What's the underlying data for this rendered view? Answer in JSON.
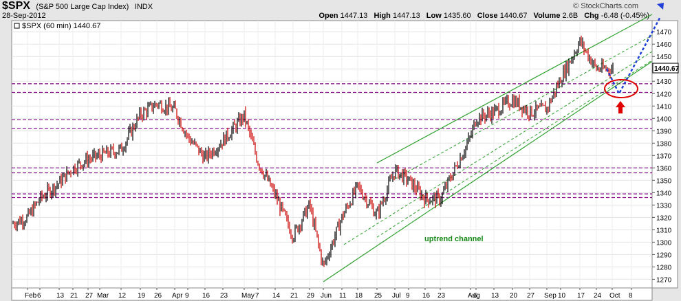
{
  "header": {
    "symbol": "$SPX",
    "description": "(S&P 500 Large Cap Index)",
    "exchange": "INDX",
    "date": "28-Sep-2012",
    "brand": "© StockCharts.com",
    "open_label": "Open",
    "open": "1447.13",
    "high_label": "High",
    "high": "1447.13",
    "low_label": "Low",
    "low": "1435.60",
    "close_label": "Close",
    "close": "1440.67",
    "volume_label": "Volume",
    "volume": "2.6B",
    "chg_label": "Chg",
    "chg": "-6.48 (-0.45%)"
  },
  "legend": {
    "label": "$SPX (60 min) 1440.67"
  },
  "price_tag": "1440.67",
  "annotation": "uptrend channel",
  "colors": {
    "up": "#000000",
    "down": "#cc0000",
    "channel": "#2ca02c",
    "hline": "#800080",
    "projection": "#1f3fd6",
    "circle": "#e00000",
    "arrow": "#e00000"
  },
  "chart_data": {
    "type": "ohlc",
    "interval": "60 min",
    "ylim": [
      1263,
      1479
    ],
    "y_ticks": [
      "1270",
      "1280",
      "1290",
      "1300",
      "1310",
      "1320",
      "1330",
      "1340",
      "1350",
      "1360",
      "1370",
      "1380",
      "1390",
      "1400",
      "1410",
      "1420",
      "1430",
      "1440",
      "1450",
      "1460",
      "1470"
    ],
    "x_ticks": [
      "Feb",
      "6",
      "13",
      "21",
      "27",
      "Mar",
      "12",
      "19",
      "26",
      "Apr",
      "9",
      "16",
      "23",
      "May",
      "7",
      "14",
      "21",
      "29",
      "Jun",
      "11",
      "18",
      "25",
      "Jul",
      "9",
      "16",
      "23",
      "Aug",
      "6",
      "13",
      "20",
      "27",
      "Sep",
      "10",
      "17",
      "24",
      "Oct",
      "8"
    ],
    "price_path": [
      {
        "x": "Feb",
        "y": 1320
      },
      {
        "x": "6",
        "y": 1335
      },
      {
        "x": "13",
        "y": 1348
      },
      {
        "x": "21",
        "y": 1360
      },
      {
        "x": "27",
        "y": 1367
      },
      {
        "x": "Mar",
        "y": 1370
      },
      {
        "x": "12",
        "y": 1375
      },
      {
        "x": "19",
        "y": 1403
      },
      {
        "x": "26",
        "y": 1412
      },
      {
        "x": "Apr",
        "y": 1407
      },
      {
        "x": "9",
        "y": 1385
      },
      {
        "x": "16",
        "y": 1368
      },
      {
        "x": "23",
        "y": 1382
      },
      {
        "x": "May",
        "y": 1402
      },
      {
        "x": "7",
        "y": 1365
      },
      {
        "x": "14",
        "y": 1338
      },
      {
        "x": "21",
        "y": 1305
      },
      {
        "x": "29",
        "y": 1330
      },
      {
        "x": "Jun",
        "y": 1280
      },
      {
        "x": "11",
        "y": 1320
      },
      {
        "x": "18",
        "y": 1345
      },
      {
        "x": "25",
        "y": 1322
      },
      {
        "x": "Jul",
        "y": 1358
      },
      {
        "x": "9",
        "y": 1350
      },
      {
        "x": "16",
        "y": 1335
      },
      {
        "x": "23",
        "y": 1335
      },
      {
        "x": "Aug",
        "y": 1385
      },
      {
        "x": "6",
        "y": 1400
      },
      {
        "x": "13",
        "y": 1405
      },
      {
        "x": "20",
        "y": 1415
      },
      {
        "x": "27",
        "y": 1405
      },
      {
        "x": "Sep",
        "y": 1408
      },
      {
        "x": "10",
        "y": 1432
      },
      {
        "x": "17",
        "y": 1462
      },
      {
        "x": "24",
        "y": 1440
      }
    ],
    "horizontal_lines": [
      1428,
      1421,
      1399,
      1392,
      1360,
      1356,
      1339,
      1336
    ],
    "channel": {
      "start": {
        "x": "Jun",
        "y": 1268
      },
      "lines_end": [
        1484,
        1467,
        1447
      ],
      "lines_start_offsets": [
        {
          "x": "25",
          "y": 1364
        },
        {
          "x": "Jul",
          "y": 1351
        },
        {
          "x": "25",
          "y": 1304
        }
      ]
    },
    "projection": {
      "from": {
        "x": "Oct",
        "y": 1440
      },
      "via": {
        "x": "Oct",
        "y": 1420
      },
      "to": {
        "x": "8",
        "y": 1482
      }
    },
    "highlight_circle": {
      "x": "Oct",
      "y": 1424
    }
  }
}
